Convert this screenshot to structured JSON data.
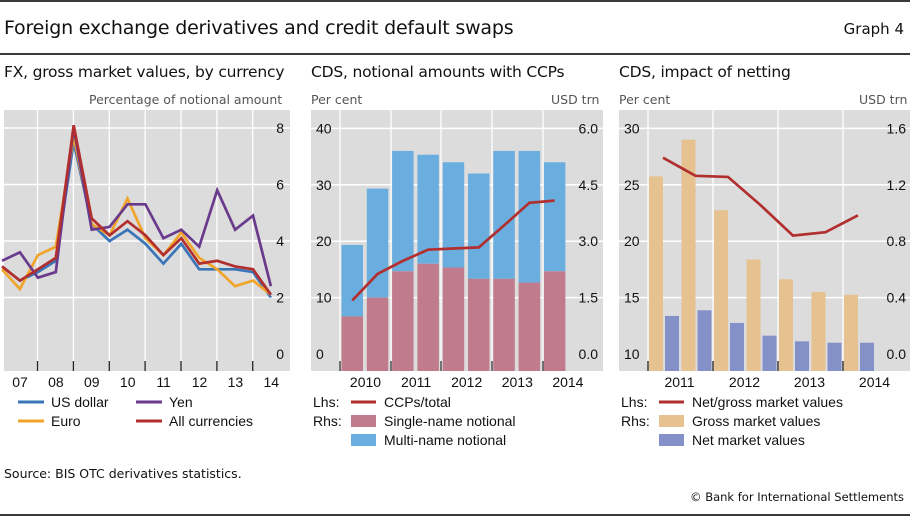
{
  "header": {
    "title": "Foreign exchange derivatives and credit default swaps",
    "graph_number": "Graph 4"
  },
  "footer": {
    "source": "Source: BIS OTC derivatives statistics.",
    "copyright": "© Bank for International Settlements"
  },
  "chart_data": [
    {
      "type": "line",
      "title": "FX, gross market values, by currency",
      "ylabel": "Percentage of notional amount",
      "y_axis_side": "right",
      "ylim": [
        0,
        8.6
      ],
      "yticks": [
        0,
        2,
        4,
        6,
        8
      ],
      "x_tick_labels": [
        "07",
        "08",
        "09",
        "10",
        "11",
        "12",
        "13",
        "14"
      ],
      "x": [
        "H1 2007",
        "H2 2007",
        "H1 2008",
        "H2 2008",
        "H1 2009",
        "H2 2009",
        "H1 2010",
        "H2 2010",
        "H1 2011",
        "H2 2011",
        "H1 2012",
        "H2 2012",
        "H1 2013",
        "H2 2013",
        "H1 2014",
        "H2 2014"
      ],
      "grid": true,
      "legend_position": "bottom",
      "series": [
        {
          "name": "US dollar",
          "color": "#3a75b8",
          "values": [
            3.1,
            2.6,
            2.9,
            3.3,
            7.5,
            4.6,
            4.0,
            4.4,
            3.9,
            3.2,
            3.9,
            3.0,
            3.0,
            3.0,
            2.9,
            2.0
          ]
        },
        {
          "name": "Euro",
          "color": "#f0a52a",
          "values": [
            3.0,
            2.3,
            3.5,
            3.8,
            7.7,
            4.6,
            4.2,
            5.5,
            4.1,
            3.5,
            4.3,
            3.4,
            3.0,
            2.4,
            2.6,
            2.1
          ]
        },
        {
          "name": "Yen",
          "color": "#6a3a8c",
          "values": [
            3.3,
            3.6,
            2.7,
            2.9,
            8.0,
            4.4,
            4.5,
            5.3,
            5.3,
            4.1,
            4.4,
            3.8,
            5.8,
            4.4,
            4.9,
            2.4
          ]
        },
        {
          "name": "All currencies",
          "color": "#b22f2f",
          "values": [
            3.1,
            2.6,
            3.0,
            3.4,
            8.1,
            4.8,
            4.2,
            4.7,
            4.2,
            3.5,
            4.1,
            3.2,
            3.3,
            3.1,
            3.0,
            2.1
          ]
        }
      ]
    },
    {
      "type": "bar",
      "title": "CDS, notional amounts with CCPs",
      "ylabel_left": "Per cent",
      "ylabel_right": "USD trn",
      "ylim_left": [
        0,
        42
      ],
      "ylim_right": [
        0,
        6.3
      ],
      "yticks_left": [
        0,
        10,
        20,
        30,
        40
      ],
      "yticks_right": [
        "0.0",
        "1.5",
        "3.0",
        "4.5",
        "6.0"
      ],
      "x_tick_labels": [
        "2010",
        "2011",
        "2012",
        "2013",
        "2014"
      ],
      "x": [
        "H2 2009",
        "H1 2010",
        "H2 2010",
        "H1 2011",
        "H2 2011",
        "H1 2012",
        "H2 2012",
        "H1 2013",
        "H2 2013"
      ],
      "grid": true,
      "stacked": true,
      "legend_position": "bottom",
      "series": [
        {
          "name": "Single-name notional",
          "axis": "Rhs",
          "color": "#c07c8c",
          "values": [
            1.0,
            1.5,
            2.2,
            2.4,
            2.3,
            2.0,
            2.0,
            1.9,
            2.2
          ]
        },
        {
          "name": "Multi-name notional",
          "axis": "Rhs",
          "color": "#6aaee0",
          "values": [
            1.9,
            2.9,
            3.2,
            2.9,
            2.8,
            2.8,
            3.4,
            3.5,
            2.9
          ]
        },
        {
          "name": "CCPs/total",
          "axis": "Lhs",
          "type": "line",
          "color": "#b22f2f",
          "values": [
            9.5,
            14.2,
            16.5,
            18.5,
            18.7,
            18.9,
            22.8,
            26.8,
            27.2
          ]
        }
      ],
      "legend": [
        {
          "prefix": "Lhs:",
          "name": "CCPs/total",
          "kind": "line",
          "color": "#b22f2f"
        },
        {
          "prefix": "Rhs:",
          "name": "Single-name notional",
          "kind": "box",
          "color": "#c07c8c"
        },
        {
          "prefix": "",
          "name": "Multi-name notional",
          "kind": "box",
          "color": "#6aaee0"
        }
      ]
    },
    {
      "type": "bar",
      "title": "CDS, impact of netting",
      "ylabel_left": "Per cent",
      "ylabel_right": "USD trn",
      "ylim_left": [
        10,
        31
      ],
      "ylim_right": [
        0,
        1.68
      ],
      "yticks_left": [
        10,
        15,
        20,
        25,
        30
      ],
      "yticks_right": [
        "0.0",
        "0.4",
        "0.8",
        "1.2",
        "1.6"
      ],
      "x_tick_labels": [
        "2011",
        "2012",
        "2013",
        "2014"
      ],
      "x": [
        "H2 2010",
        "H1 2011",
        "H2 2011",
        "H1 2012",
        "H2 2012",
        "H1 2013",
        "H2 2013"
      ],
      "grid": true,
      "legend_position": "bottom",
      "series": [
        {
          "name": "Gross market values",
          "axis": "Rhs",
          "color": "#e5c290",
          "values": [
            1.26,
            1.52,
            1.02,
            0.67,
            0.53,
            0.44,
            0.42
          ]
        },
        {
          "name": "Net market values",
          "axis": "Rhs",
          "color": "#8490c8",
          "values": [
            0.27,
            0.31,
            0.22,
            0.13,
            0.09,
            0.08,
            0.08
          ]
        },
        {
          "name": "Net/gross market values",
          "axis": "Lhs",
          "type": "line",
          "color": "#b22f2f",
          "values": [
            27.4,
            25.8,
            25.7,
            23.2,
            20.5,
            20.8,
            22.3
          ]
        }
      ],
      "legend": [
        {
          "prefix": "Lhs:",
          "name": "Net/gross market values",
          "kind": "line",
          "color": "#b22f2f"
        },
        {
          "prefix": "Rhs:",
          "name": "Gross market values",
          "kind": "box",
          "color": "#e5c290"
        },
        {
          "prefix": "",
          "name": "Net market values",
          "kind": "box",
          "color": "#8490c8"
        }
      ]
    }
  ]
}
